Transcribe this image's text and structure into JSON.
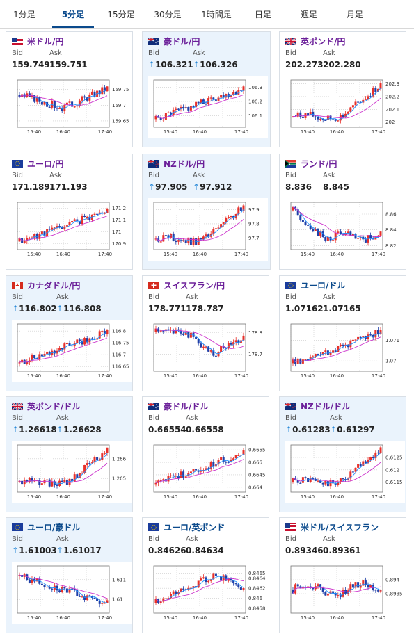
{
  "tabs": [
    {
      "label": "1分足",
      "active": false
    },
    {
      "label": "5分足",
      "active": true
    },
    {
      "label": "15分足",
      "active": false
    },
    {
      "label": "30分足",
      "active": false
    },
    {
      "label": "1時間足",
      "active": false
    },
    {
      "label": "日足",
      "active": false
    },
    {
      "label": "週足",
      "active": false
    },
    {
      "label": "月足",
      "active": false
    }
  ],
  "bid_label": "Bid",
  "ask_label": "Ask",
  "cards": [
    {
      "name": "米ドル/円",
      "flag": "us-flag",
      "color": "purple",
      "highlight": false,
      "bid": "159.749",
      "ask": "159.751",
      "bid_up": false,
      "ask_up": false,
      "chart_data": {
        "type": "candlestick",
        "x": [
          "15:40",
          "16:40",
          "17:40"
        ],
        "y_ticks": [
          "159.75",
          "159.7",
          "159.65"
        ],
        "ylim": [
          159.63,
          159.78
        ],
        "trend": "down-up",
        "seed": 3
      }
    },
    {
      "name": "豪ドル/円",
      "flag": "au-flag",
      "color": "purple",
      "highlight": true,
      "bid": "106.321",
      "ask": "106.326",
      "bid_up": true,
      "ask_up": true,
      "chart_data": {
        "type": "candlestick",
        "x": [
          "15:40",
          "16:40",
          "17:40"
        ],
        "y_ticks": [
          "106.3",
          "106.2",
          "106.1"
        ],
        "ylim": [
          106.02,
          106.35
        ],
        "trend": "up",
        "seed": 5
      }
    },
    {
      "name": "英ポンド/円",
      "flag": "gb-flag",
      "color": "purple",
      "highlight": false,
      "bid": "202.273",
      "ask": "202.280",
      "bid_up": false,
      "ask_up": false,
      "chart_data": {
        "type": "candlestick",
        "x": [
          "15:40",
          "16:40",
          "17:40"
        ],
        "y_ticks": [
          "202.3",
          "202.2",
          "202.1",
          "202"
        ],
        "ylim": [
          201.96,
          202.33
        ],
        "trend": "flat-up",
        "seed": 7
      }
    },
    {
      "name": "ユーロ/円",
      "flag": "eu-flag",
      "color": "purple",
      "highlight": false,
      "bid": "171.189",
      "ask": "171.193",
      "bid_up": false,
      "ask_up": false,
      "chart_data": {
        "type": "candlestick",
        "x": [
          "15:40",
          "16:40",
          "17:40"
        ],
        "y_ticks": [
          "171.2",
          "171.1",
          "171",
          "170.9"
        ],
        "ylim": [
          170.85,
          171.25
        ],
        "trend": "up",
        "seed": 11
      }
    },
    {
      "name": "NZドル/円",
      "flag": "nz-flag",
      "color": "purple",
      "highlight": true,
      "bid": "97.905",
      "ask": "97.912",
      "bid_up": true,
      "ask_up": true,
      "chart_data": {
        "type": "candlestick",
        "x": [
          "15:40",
          "16:40",
          "17:40"
        ],
        "y_ticks": [
          "97.9",
          "97.8",
          "97.7"
        ],
        "ylim": [
          97.62,
          97.95
        ],
        "trend": "flat-up",
        "seed": 13
      }
    },
    {
      "name": "ランド/円",
      "flag": "za-flag",
      "color": "purple",
      "highlight": false,
      "bid": "8.836",
      "ask": "8.845",
      "bid_up": false,
      "ask_up": false,
      "chart_data": {
        "type": "candlestick",
        "x": [
          "15:40",
          "16:40",
          "17:40"
        ],
        "y_ticks": [
          "8.86",
          "8.84",
          "8.82"
        ],
        "ylim": [
          8.815,
          8.875
        ],
        "trend": "down-flat",
        "seed": 17
      }
    },
    {
      "name": "カナダドル/円",
      "flag": "ca-flag",
      "color": "purple",
      "highlight": true,
      "bid": "116.802",
      "ask": "116.808",
      "bid_up": true,
      "ask_up": true,
      "chart_data": {
        "type": "candlestick",
        "x": [
          "15:40",
          "16:40",
          "17:40"
        ],
        "y_ticks": [
          "116.8",
          "116.75",
          "116.7",
          "116.65"
        ],
        "ylim": [
          116.63,
          116.83
        ],
        "trend": "up",
        "seed": 19
      }
    },
    {
      "name": "スイスフラン/円",
      "flag": "ch-flag",
      "color": "purple",
      "highlight": false,
      "bid": "178.771",
      "ask": "178.787",
      "bid_up": false,
      "ask_up": false,
      "chart_data": {
        "type": "candlestick",
        "x": [
          "15:40",
          "16:40",
          "17:40"
        ],
        "y_ticks": [
          "178.8",
          "178.7"
        ],
        "ylim": [
          178.62,
          178.84
        ],
        "trend": "dip",
        "seed": 23
      }
    },
    {
      "name": "ユーロ/ドル",
      "flag": "eu-flag",
      "color": "blue",
      "highlight": false,
      "bid": "1.07162",
      "ask": "1.07165",
      "bid_up": false,
      "ask_up": false,
      "chart_data": {
        "type": "candlestick",
        "x": [
          "15:40",
          "16:40",
          "17:40"
        ],
        "y_ticks": [
          "1.071",
          "1.07"
        ],
        "ylim": [
          1.0695,
          1.0718
        ],
        "trend": "up",
        "seed": 29
      }
    },
    {
      "name": "英ポンド/ドル",
      "flag": "gb-flag",
      "color": "purple",
      "highlight": true,
      "bid": "1.26618",
      "ask": "1.26628",
      "bid_up": true,
      "ask_up": true,
      "chart_data": {
        "type": "candlestick",
        "x": [
          "15:40",
          "16:40",
          "17:40"
        ],
        "y_ticks": [
          "1.266",
          "1.265"
        ],
        "ylim": [
          1.2643,
          1.2667
        ],
        "trend": "flat-up",
        "seed": 31
      }
    },
    {
      "name": "豪ドル/ドル",
      "flag": "au-flag",
      "color": "purple",
      "highlight": false,
      "bid": "0.66554",
      "ask": "0.66558",
      "bid_up": false,
      "ask_up": false,
      "chart_data": {
        "type": "candlestick",
        "x": [
          "15:40",
          "16:40",
          "17:40"
        ],
        "y_ticks": [
          "0.6655",
          "0.665",
          "0.6645",
          "0.664"
        ],
        "ylim": [
          0.6638,
          0.6657
        ],
        "trend": "up",
        "seed": 37
      }
    },
    {
      "name": "NZドル/ドル",
      "flag": "nz-flag",
      "color": "purple",
      "highlight": true,
      "bid": "0.61283",
      "ask": "0.61297",
      "bid_up": true,
      "ask_up": true,
      "chart_data": {
        "type": "candlestick",
        "x": [
          "15:40",
          "16:40",
          "17:40"
        ],
        "y_ticks": [
          "0.6125",
          "0.612",
          "0.6115"
        ],
        "ylim": [
          0.6111,
          0.613
        ],
        "trend": "flat-up",
        "seed": 41
      }
    },
    {
      "name": "ユーロ/豪ドル",
      "flag": "eu-flag",
      "color": "blue",
      "highlight": true,
      "bid": "1.61003",
      "ask": "1.61017",
      "bid_up": true,
      "ask_up": true,
      "chart_data": {
        "type": "candlestick",
        "x": [
          "15:40",
          "16:40",
          "17:40"
        ],
        "y_ticks": [
          "1.611",
          "1.61"
        ],
        "ylim": [
          1.6093,
          1.6117
        ],
        "trend": "down",
        "seed": 43
      }
    },
    {
      "name": "ユーロ/英ポンド",
      "flag": "eu-flag",
      "color": "blue",
      "highlight": false,
      "bid": "0.84626",
      "ask": "0.84634",
      "bid_up": false,
      "ask_up": false,
      "chart_data": {
        "type": "candlestick",
        "x": [
          "15:40",
          "16:40",
          "17:40"
        ],
        "y_ticks": [
          "0.8465",
          "0.8464",
          "0.8462",
          "0.846",
          "0.8458"
        ],
        "ylim": [
          0.8457,
          0.84665
        ],
        "trend": "up-down",
        "seed": 47
      }
    },
    {
      "name": "米ドル/スイスフラン",
      "flag": "us-flag",
      "color": "blue",
      "highlight": false,
      "bid": "0.89346",
      "ask": "0.89361",
      "bid_up": false,
      "ask_up": false,
      "chart_data": {
        "type": "candlestick",
        "x": [
          "15:40",
          "16:40",
          "17:40"
        ],
        "y_ticks": [
          "0.894",
          "0.8935"
        ],
        "ylim": [
          0.8928,
          0.8945
        ],
        "trend": "flat",
        "seed": 53
      }
    }
  ],
  "colors": {
    "up": "#e8302a",
    "down": "#1f3fa8",
    "ma_fast": "#1e90ff",
    "ma_slow": "#cc33cc",
    "grid": "#c8c8c8",
    "up_arrow": "#2b8ad8"
  }
}
